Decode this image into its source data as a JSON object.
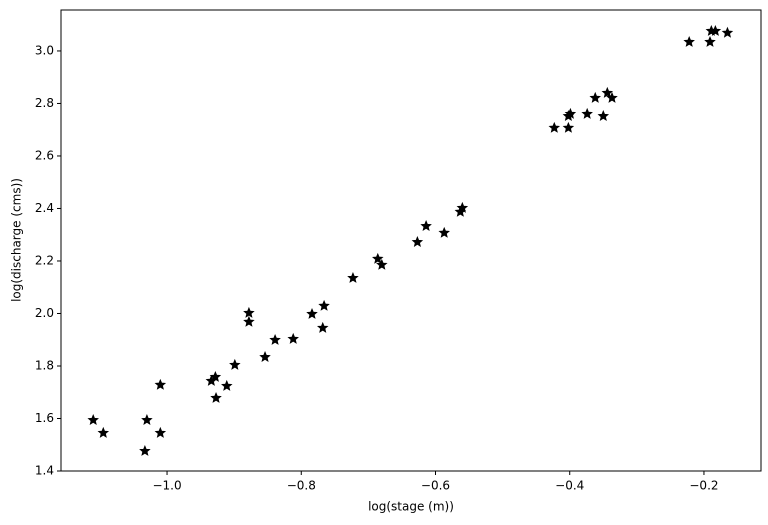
{
  "chart_data": {
    "type": "scatter",
    "x_label": "log(stage (m))",
    "y_label": "log(discharge (cms))",
    "marker": "star",
    "color": "#000000",
    "x": [
      -1.11,
      -1.095,
      -1.03,
      -1.033,
      -1.01,
      -1.01,
      -0.934,
      -0.928,
      -0.927,
      -0.911,
      -0.899,
      -0.878,
      -0.878,
      -0.854,
      -0.839,
      -0.812,
      -0.784,
      -0.768,
      -0.766,
      -0.723,
      -0.686,
      -0.68,
      -0.627,
      -0.614,
      -0.587,
      -0.563,
      -0.56,
      -0.423,
      -0.402,
      -0.402,
      -0.399,
      -0.374,
      -0.362,
      -0.35,
      -0.344,
      -0.337,
      -0.222,
      -0.191,
      -0.189,
      -0.183,
      -0.165
    ],
    "values": [
      1.594,
      1.545,
      1.594,
      1.476,
      1.728,
      1.545,
      1.743,
      1.758,
      1.678,
      1.724,
      1.804,
      2.002,
      1.968,
      1.834,
      1.899,
      1.903,
      1.998,
      1.945,
      2.029,
      2.135,
      2.208,
      2.185,
      2.272,
      2.333,
      2.307,
      2.387,
      2.402,
      2.707,
      2.707,
      2.752,
      2.76,
      2.76,
      2.821,
      2.752,
      2.84,
      2.821,
      3.034,
      3.034,
      3.076,
      3.076,
      3.069
    ],
    "xlim": [
      -1.158,
      -0.115
    ],
    "ylim": [
      1.4,
      3.156
    ],
    "xticks": [
      {
        "value": -1.0,
        "label": "−1.0"
      },
      {
        "value": -0.8,
        "label": "−0.8"
      },
      {
        "value": -0.6,
        "label": "−0.6"
      },
      {
        "value": -0.4,
        "label": "−0.4"
      },
      {
        "value": -0.2,
        "label": "−0.2"
      }
    ],
    "yticks": [
      1.4,
      1.6,
      1.8,
      {
        "value": 2.0,
        "label": "2.0"
      },
      2.2,
      2.4,
      2.6,
      2.8,
      {
        "value": 3.0,
        "label": "3.0"
      }
    ],
    "grid": false
  }
}
